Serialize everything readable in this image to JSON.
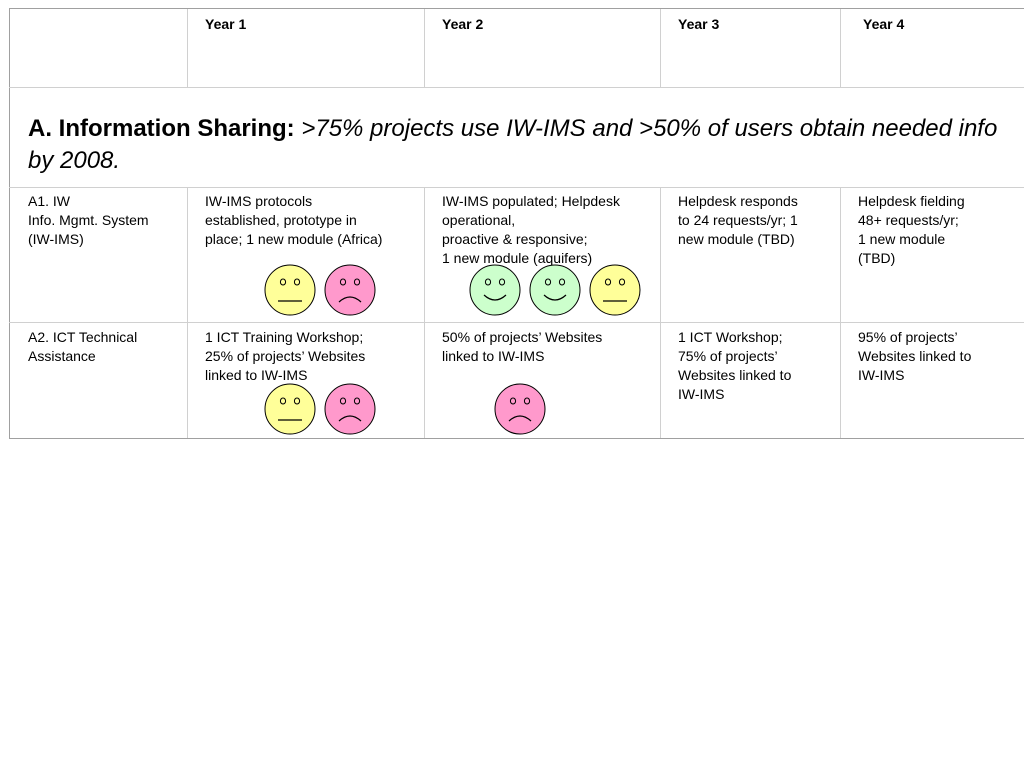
{
  "header": {
    "col0": "",
    "col1": "Year 1",
    "col2": "Year 2",
    "col3": "Year 3",
    "col4": "Year 4"
  },
  "section": {
    "label": "A. Information Sharing:",
    "goal": " >75% projects use IW-IMS and >50% of users obtain needed info by 2008."
  },
  "rows": [
    {
      "name": "A1. IW\nInfo. Mgmt. System\n(IW-IMS)",
      "y1": "IW-IMS protocols\nestablished, prototype in\nplace; 1 new module (Africa)",
      "y2": "IW-IMS populated; Helpdesk\noperational,\nproactive & responsive;\n1 new module (aquifers)",
      "y3": "Helpdesk responds\nto 24 requests/yr;  1\nnew module (TBD)",
      "y4": "Helpdesk fielding\n48+ requests/yr;\n1 new module\n(TBD)",
      "faces_y1": [
        "neutral",
        "sad"
      ],
      "faces_y2": [
        "happy",
        "happy",
        "neutral"
      ]
    },
    {
      "name": "A2. ICT Technical\nAssistance",
      "y1": "1 ICT Training Workshop;\n25% of projects’ Websites\nlinked to IW-IMS",
      "y2": "50% of projects’ Websites\nlinked to IW-IMS",
      "y3": "1 ICT Workshop;\n75% of projects’\nWebsites linked to\nIW-IMS",
      "y4": "95% of projects’\nWebsites linked to\nIW-IMS",
      "faces_y1": [
        "neutral",
        "sad"
      ],
      "faces_y2": [
        "sad"
      ]
    }
  ],
  "colors": {
    "neutral": "#ffff99",
    "sad": "#ff99cc",
    "happy": "#ccffcc"
  }
}
